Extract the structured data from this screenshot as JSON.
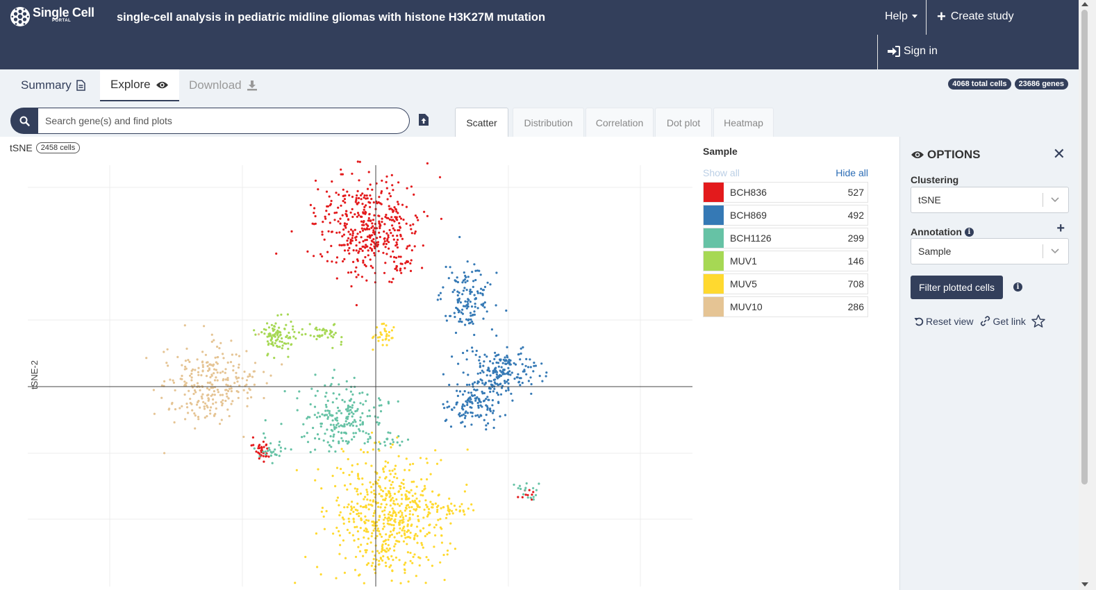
{
  "header": {
    "logo_title": "Single Cell",
    "logo_sub": "PORTAL",
    "study_title": "single-cell analysis in pediatric midline gliomas with histone H3K27M mutation",
    "help_label": "Help",
    "create_label": "Create study",
    "signin_label": "Sign in"
  },
  "tabs": {
    "summary": "Summary",
    "explore": "Explore",
    "download": "Download"
  },
  "badges": {
    "cells": "4068 total cells",
    "genes": "23686 genes"
  },
  "search": {
    "placeholder": "Search gene(s) and find plots"
  },
  "plot_tabs": {
    "scatter": "Scatter",
    "distribution": "Distribution",
    "correlation": "Correlation",
    "dotplot": "Dot plot",
    "heatmap": "Heatmap"
  },
  "plot": {
    "name": "tSNE",
    "cells": "2458 cells",
    "ylabel": "tSNE-2"
  },
  "legend": {
    "title": "Sample",
    "show_all": "Show all",
    "hide_all": "Hide all",
    "items": [
      {
        "name": "BCH836",
        "count": "527",
        "color": "#e31a1c"
      },
      {
        "name": "BCH869",
        "count": "492",
        "color": "#3579b5"
      },
      {
        "name": "BCH1126",
        "count": "299",
        "color": "#66c2a5"
      },
      {
        "name": "MUV1",
        "count": "146",
        "color": "#a6d854"
      },
      {
        "name": "MUV5",
        "count": "708",
        "color": "#ffd92f"
      },
      {
        "name": "MUV10",
        "count": "286",
        "color": "#e5c494"
      }
    ]
  },
  "options": {
    "title": "OPTIONS",
    "clustering_label": "Clustering",
    "clustering_value": "tSNE",
    "annotation_label": "Annotation",
    "annotation_value": "Sample",
    "filter_label": "Filter plotted cells",
    "reset_label": "Reset view",
    "link_label": "Get link"
  },
  "chart_data": {
    "type": "scatter",
    "title": "",
    "xlabel": "",
    "ylabel": "tSNE-2",
    "grid": true,
    "axis_color": "#444444",
    "series": [
      {
        "name": "BCH836",
        "color": "#e31a1c",
        "n": 527
      },
      {
        "name": "BCH869",
        "color": "#3579b5",
        "n": 492
      },
      {
        "name": "BCH1126",
        "color": "#66c2a5",
        "n": 299
      },
      {
        "name": "MUV1",
        "color": "#a6d854",
        "n": 146
      },
      {
        "name": "MUV5",
        "color": "#ffd92f",
        "n": 708
      },
      {
        "name": "MUV10",
        "color": "#e5c494",
        "n": 286
      }
    ]
  }
}
